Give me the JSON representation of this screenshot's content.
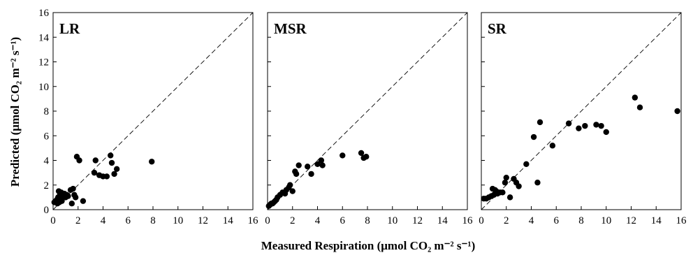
{
  "chart_data": {
    "type": "scatter",
    "ylabel": "Predicted (μmol CO₂ m⁻² s⁻¹)",
    "xlabel": "Measured Respiration (μmol CO₂ m⁻² s⁻¹)",
    "xlim": [
      0,
      16
    ],
    "ylim": [
      0,
      16
    ],
    "x_ticks": [
      0,
      2,
      4,
      6,
      8,
      10,
      12,
      14,
      16
    ],
    "y_ticks": [
      0,
      2,
      4,
      6,
      8,
      10,
      12,
      14,
      16
    ],
    "grid": false,
    "reference_line": "1:1 dashed",
    "panels": [
      {
        "label": "LR",
        "points": [
          [
            0.1,
            0.6
          ],
          [
            0.2,
            0.7
          ],
          [
            0.3,
            0.8
          ],
          [
            0.35,
            0.5
          ],
          [
            0.4,
            1.0
          ],
          [
            0.45,
            1.5
          ],
          [
            0.5,
            0.6
          ],
          [
            0.55,
            1.2
          ],
          [
            0.6,
            0.9
          ],
          [
            0.65,
            1.4
          ],
          [
            0.7,
            0.7
          ],
          [
            0.8,
            1.1
          ],
          [
            0.9,
            1.3
          ],
          [
            1.0,
            1.0
          ],
          [
            1.1,
            1.2
          ],
          [
            1.2,
            1.1
          ],
          [
            1.4,
            1.6
          ],
          [
            1.5,
            0.5
          ],
          [
            1.6,
            1.7
          ],
          [
            1.7,
            1.2
          ],
          [
            1.8,
            1.0
          ],
          [
            1.9,
            4.3
          ],
          [
            2.1,
            4.0
          ],
          [
            2.4,
            0.7
          ],
          [
            3.3,
            3.0
          ],
          [
            3.4,
            4.0
          ],
          [
            3.7,
            2.8
          ],
          [
            4.0,
            2.7
          ],
          [
            4.3,
            2.7
          ],
          [
            4.6,
            4.4
          ],
          [
            4.7,
            3.8
          ],
          [
            4.9,
            2.9
          ],
          [
            5.1,
            3.3
          ],
          [
            7.9,
            3.9
          ]
        ]
      },
      {
        "label": "MSR",
        "points": [
          [
            0.1,
            0.3
          ],
          [
            0.2,
            0.4
          ],
          [
            0.3,
            0.5
          ],
          [
            0.4,
            0.5
          ],
          [
            0.5,
            0.6
          ],
          [
            0.6,
            0.7
          ],
          [
            0.7,
            0.8
          ],
          [
            0.8,
            1.0
          ],
          [
            1.0,
            1.2
          ],
          [
            1.2,
            1.4
          ],
          [
            1.4,
            1.3
          ],
          [
            1.5,
            1.6
          ],
          [
            1.7,
            1.8
          ],
          [
            1.8,
            2.0
          ],
          [
            2.0,
            1.5
          ],
          [
            2.2,
            3.1
          ],
          [
            2.3,
            2.9
          ],
          [
            2.5,
            3.6
          ],
          [
            3.2,
            3.5
          ],
          [
            3.5,
            2.9
          ],
          [
            4.0,
            3.7
          ],
          [
            4.3,
            4.0
          ],
          [
            4.4,
            3.6
          ],
          [
            6.0,
            4.4
          ],
          [
            7.5,
            4.6
          ],
          [
            7.7,
            4.2
          ],
          [
            7.9,
            4.3
          ]
        ]
      },
      {
        "label": "SR",
        "points": [
          [
            0.2,
            0.9
          ],
          [
            0.4,
            0.9
          ],
          [
            0.6,
            1.0
          ],
          [
            0.8,
            1.1
          ],
          [
            0.9,
            1.7
          ],
          [
            1.0,
            1.2
          ],
          [
            1.1,
            1.6
          ],
          [
            1.2,
            1.5
          ],
          [
            1.3,
            1.3
          ],
          [
            1.5,
            1.4
          ],
          [
            1.7,
            1.4
          ],
          [
            1.9,
            2.2
          ],
          [
            2.0,
            2.6
          ],
          [
            2.3,
            1.0
          ],
          [
            2.6,
            2.5
          ],
          [
            2.8,
            2.2
          ],
          [
            3.0,
            1.9
          ],
          [
            3.6,
            3.7
          ],
          [
            4.2,
            5.9
          ],
          [
            4.5,
            2.2
          ],
          [
            4.7,
            7.1
          ],
          [
            5.7,
            5.2
          ],
          [
            7.0,
            7.0
          ],
          [
            7.8,
            6.6
          ],
          [
            8.3,
            6.8
          ],
          [
            9.2,
            6.9
          ],
          [
            9.6,
            6.8
          ],
          [
            10.0,
            6.3
          ],
          [
            12.3,
            9.1
          ],
          [
            12.7,
            8.3
          ],
          [
            15.7,
            8.0
          ]
        ]
      }
    ]
  }
}
